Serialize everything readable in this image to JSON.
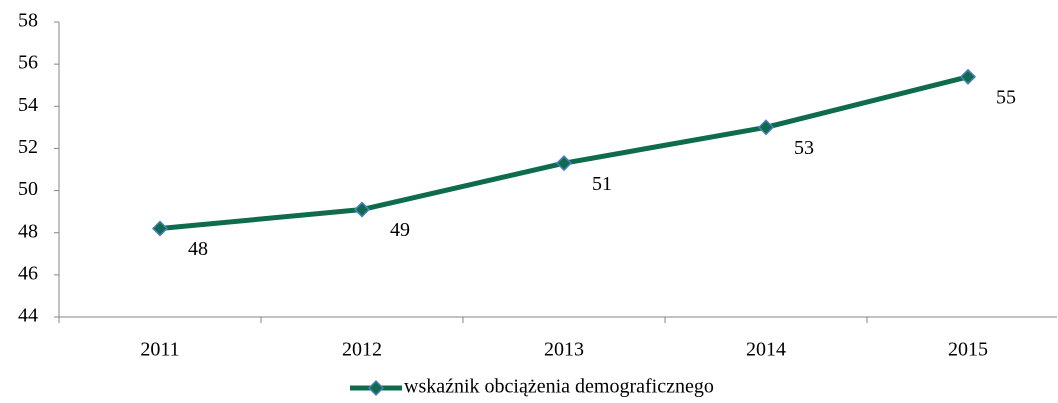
{
  "chart_data": {
    "type": "line",
    "categories": [
      "2011",
      "2012",
      "2013",
      "2014",
      "2015"
    ],
    "series": [
      {
        "name": "wskaźnik obciążenia demograficznego",
        "color": "#0f6b4d",
        "values": [
          48.2,
          49.1,
          51.3,
          53.0,
          55.4
        ],
        "value_labels": [
          "48",
          "49",
          "51",
          "53",
          "55"
        ]
      }
    ],
    "ylim": [
      44,
      58
    ],
    "yticks": [
      44,
      46,
      48,
      50,
      52,
      54,
      56,
      58
    ]
  }
}
